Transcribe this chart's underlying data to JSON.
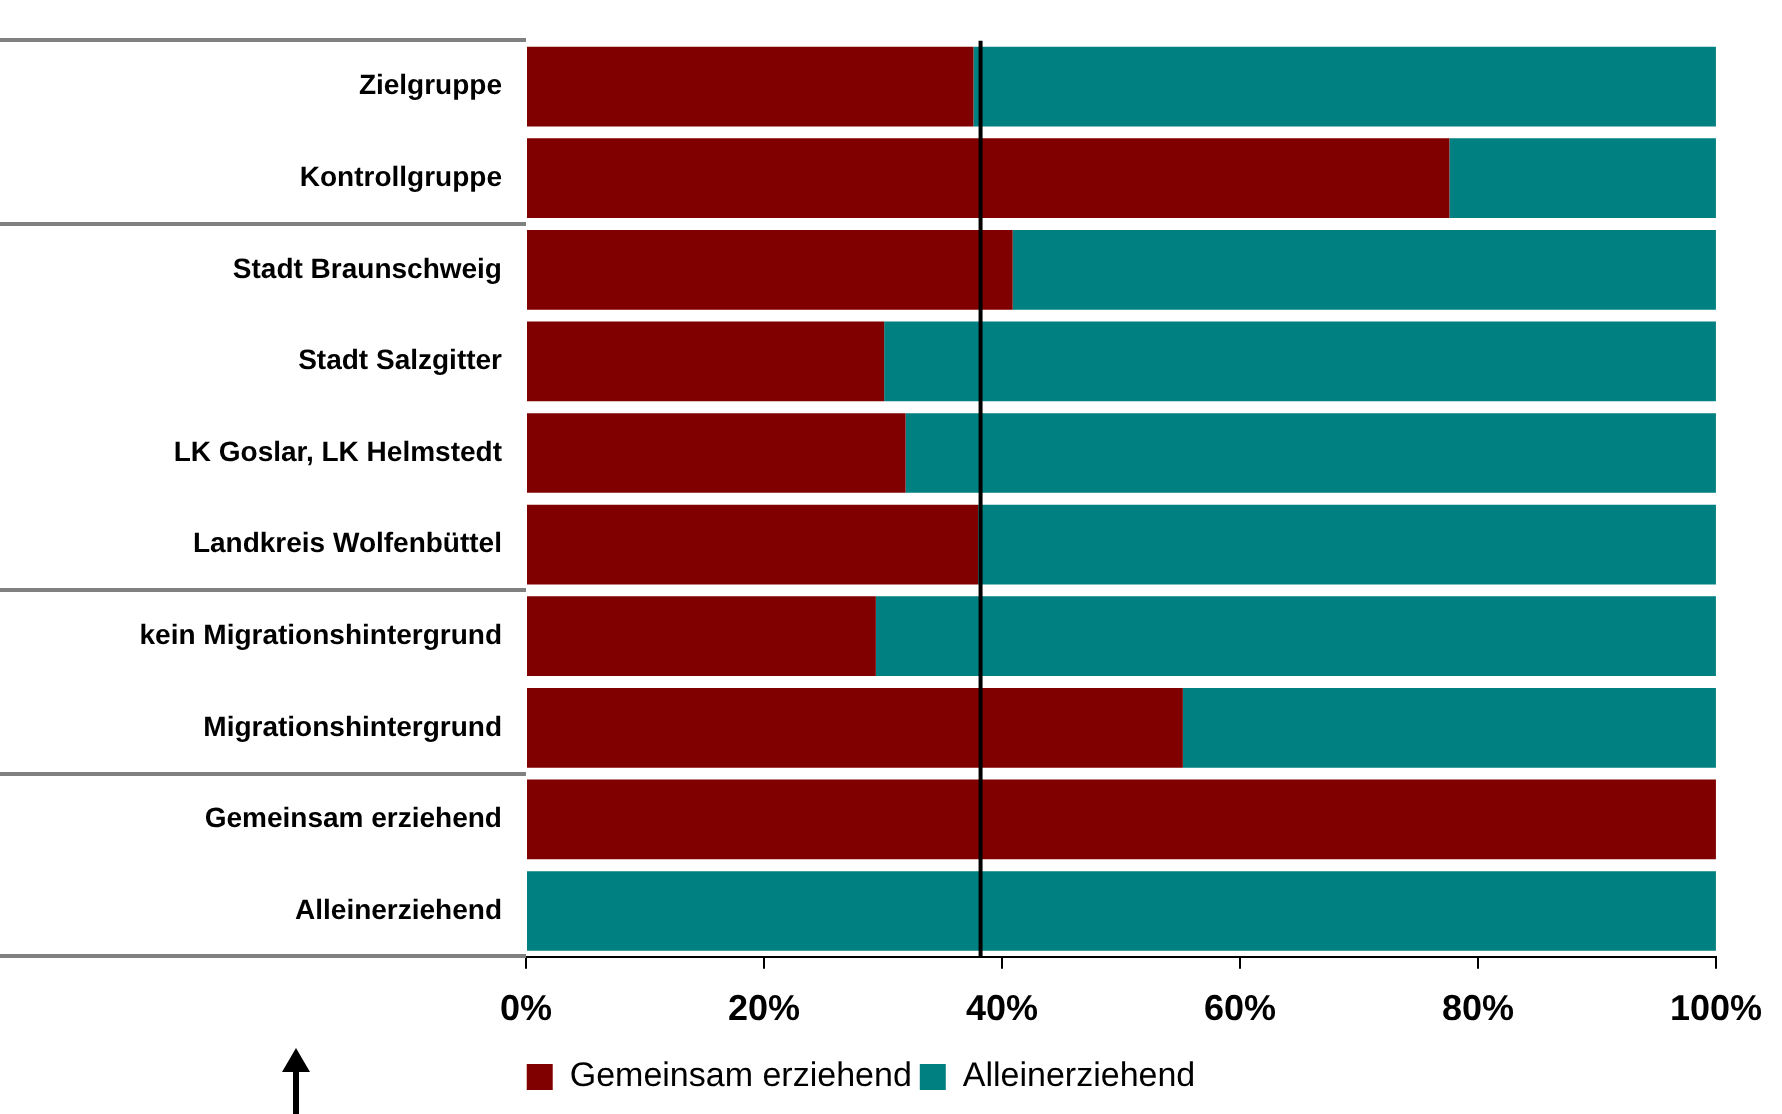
{
  "chart_data": {
    "type": "bar",
    "orientation": "horizontal",
    "stacked": true,
    "categories": [
      "Zielgruppe",
      "Kontrollgruppe",
      "Stadt Braunschweig",
      "Stadt Salzgitter",
      "LK Goslar, LK Helmstedt",
      "Landkreis Wolfenbüttel",
      "kein Migrationshintergrund",
      "Migrationshintergrund",
      "Gemeinsam erziehend",
      "Alleinerziehend"
    ],
    "series": [
      {
        "name": "Gemeinsam erziehend",
        "color": "#800000",
        "values": [
          37.6,
          77.6,
          40.9,
          30.1,
          31.9,
          38.0,
          29.4,
          55.2,
          100,
          0
        ]
      },
      {
        "name": "Alleinerziehend",
        "color": "#008080",
        "values": [
          62.4,
          22.4,
          59.1,
          69.9,
          68.1,
          62.0,
          70.6,
          44.8,
          0,
          100
        ]
      }
    ],
    "xlim": [
      0,
      100
    ],
    "xticks": [
      {
        "value": 0,
        "label": "0%"
      },
      {
        "value": 20,
        "label": "20%"
      },
      {
        "value": 40,
        "label": "40%"
      },
      {
        "value": 60,
        "label": "60%"
      },
      {
        "value": 80,
        "label": "80%"
      },
      {
        "value": 100,
        "label": "100%"
      }
    ],
    "ref_lines": [
      {
        "axis": "x",
        "value": 38.2,
        "color": "#000000"
      }
    ],
    "grid": false,
    "legend": "bottom"
  }
}
